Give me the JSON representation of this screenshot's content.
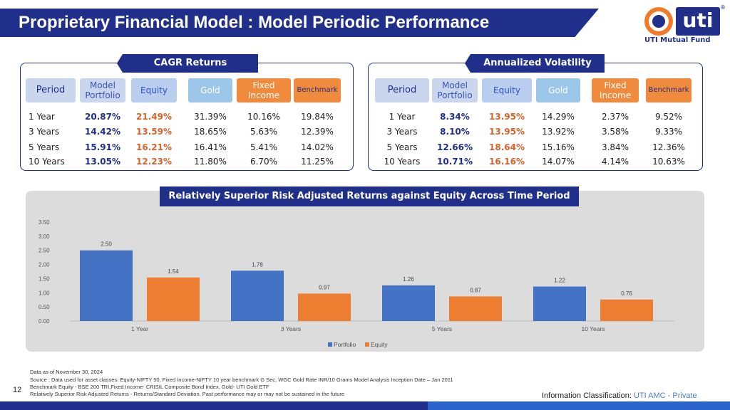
{
  "title": "Proprietary Financial Model : Model Periodic Performance",
  "logo": {
    "brand": "uti",
    "tagline": "UTI Mutual Fund",
    "reg": "®"
  },
  "cagr": {
    "label": "CAGR Returns",
    "headers": {
      "period": "Period",
      "model_1": "Model",
      "model_2": "Portfolio",
      "equity": "Equity",
      "gold": "Gold",
      "fixed_1": "Fixed",
      "fixed_2": "Income",
      "benchmark": "Benchmark"
    },
    "rows": [
      {
        "period": "1 Year",
        "model": "20.87%",
        "equity": "21.49%",
        "gold": "31.39%",
        "fixed": "10.16%",
        "benchmark": "19.84%"
      },
      {
        "period": "3 Years",
        "model": "14.42%",
        "equity": "13.59%",
        "gold": "18.65%",
        "fixed": "5.63%",
        "benchmark": "12.39%"
      },
      {
        "period": "5 Years",
        "model": "15.91%",
        "equity": "16.21%",
        "gold": "16.41%",
        "fixed": "5.41%",
        "benchmark": "14.02%"
      },
      {
        "period": "10 Years",
        "model": "13.05%",
        "equity": "12.23%",
        "gold": "11.80%",
        "fixed": "6.70%",
        "benchmark": "11.25%"
      }
    ]
  },
  "vol": {
    "label": "Annualized Volatility",
    "headers": {
      "period": "Period",
      "model_1": "Model",
      "model_2": "Portfolio",
      "equity": "Equity",
      "gold": "Gold",
      "fixed_1": "Fixed",
      "fixed_2": "Income",
      "benchmark": "Benchmark"
    },
    "rows": [
      {
        "period": "1 Year",
        "model": "8.34%",
        "equity": "13.95%",
        "gold": "14.29%",
        "fixed": "2.37%",
        "benchmark": "9.52%"
      },
      {
        "period": "3 Years",
        "model": "8.10%",
        "equity": "13.95%",
        "gold": "13.92%",
        "fixed": "3.58%",
        "benchmark": "9.33%"
      },
      {
        "period": "5 Years",
        "model": "12.66%",
        "equity": "18.64%",
        "gold": "15.16%",
        "fixed": "3.84%",
        "benchmark": "12.36%"
      },
      {
        "period": "10 Years",
        "model": "10.71%",
        "equity": "16.16%",
        "gold": "14.07%",
        "fixed": "4.14%",
        "benchmark": "10.63%"
      }
    ]
  },
  "chart_label": "Relatively Superior Risk Adjusted Returns against Equity Across Time Period",
  "chart_data": {
    "type": "bar",
    "categories": [
      "1 Year",
      "3 Years",
      "5 Years",
      "10 Years"
    ],
    "series": [
      {
        "name": "Portfolio",
        "values": [
          2.5,
          1.78,
          1.26,
          1.22
        ],
        "labels": [
          "2.50",
          "1.78",
          "1.26",
          "1.22"
        ],
        "color": "#4472c4"
      },
      {
        "name": "Equity",
        "values": [
          1.54,
          0.97,
          0.87,
          0.76
        ],
        "labels": [
          "1.54",
          "0.97",
          "0.87",
          "0.76"
        ],
        "color": "#ed7d31"
      }
    ],
    "yticks": [
      "0.00",
      "0.50",
      "1.00",
      "1.50",
      "2.00",
      "2.50",
      "3.00",
      "3.50"
    ],
    "ylim": [
      0,
      3.5
    ],
    "legend_position": "bottom"
  },
  "footnotes": [
    "Data as of November 30, 2024",
    "Source : Data used for asset classes: Equity-NIFTY 50, Fixed Income-NIFTY 10 year benchmark G Sec, WGC Gold Rate INR/10 Grams Model Analysis Inception Date – Jan 2011",
    "Benchmark Equity - BSE 200 TRI,Fixed Income- CRISIL Composite Bond Index, Gold- UTI Gold ETF",
    "Relatively Superior Risk Adjusted Returns - Returns/Standard Deviation. Past performance may or may not be sustained in the future"
  ],
  "page_number": "12",
  "info_class": {
    "prefix": "Information Classification: ",
    "value": "UTI AMC - Private"
  },
  "colors": {
    "navy": "#1f2f8a",
    "orange": "#ed7d31",
    "blue": "#4472c4"
  }
}
